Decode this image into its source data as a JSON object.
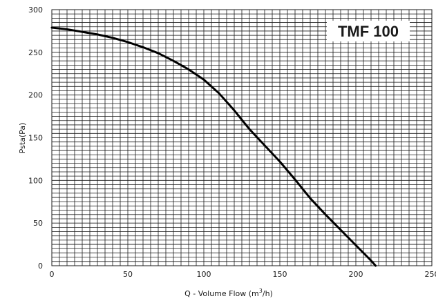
{
  "chart_data": {
    "type": "line",
    "title": "",
    "badge": "TMF 100",
    "xlabel_prefix": "Q - Volume Flow (m",
    "xlabel_sup": "3",
    "xlabel_suffix": "/h)",
    "ylabel": "Psta(Pa)",
    "xlim": [
      0,
      250
    ],
    "ylim": [
      0,
      300
    ],
    "x_ticks": [
      "0",
      "50",
      "100",
      "150",
      "200",
      "250"
    ],
    "y_ticks": [
      "0",
      "50",
      "100",
      "150",
      "200",
      "250",
      "300"
    ],
    "grid": true,
    "series": [
      {
        "x": [
          0,
          10,
          20,
          30,
          40,
          50,
          60,
          70,
          80,
          90,
          100,
          110,
          120,
          130,
          140,
          150,
          160,
          170,
          180,
          190,
          200,
          210,
          213
        ],
        "y": [
          279,
          277,
          274,
          271,
          267,
          262,
          256,
          249,
          240,
          230,
          218,
          202,
          182,
          160,
          141,
          122,
          101,
          79,
          60,
          42,
          24,
          6,
          0
        ]
      }
    ]
  }
}
